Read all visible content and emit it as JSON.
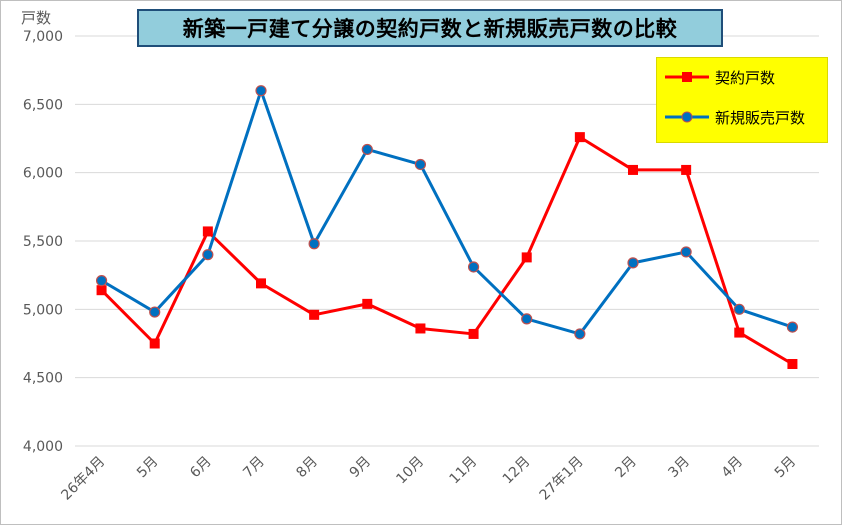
{
  "chart_data": {
    "type": "line",
    "title": "新築一戸建て分譲の契約戸数と新規販売戸数の比較",
    "ylabel": "戸数",
    "ylim": [
      4000,
      7000
    ],
    "yticks": [
      "4,000",
      "4,500",
      "5,000",
      "5,500",
      "6,000",
      "6,500",
      "7,000"
    ],
    "ytick_values": [
      4000,
      4500,
      5000,
      5500,
      6000,
      6500,
      7000
    ],
    "categories": [
      "26年4月",
      "5月",
      "6月",
      "7月",
      "8月",
      "9月",
      "10月",
      "11月",
      "12月",
      "27年1月",
      "2月",
      "3月",
      "4月",
      "5月"
    ],
    "grid": true,
    "legend_position": "top-right",
    "series": [
      {
        "name": "契約戸数",
        "color": "#ff0000",
        "marker": "square",
        "values": [
          5140,
          4750,
          5570,
          5190,
          4960,
          5040,
          4860,
          4820,
          5380,
          6260,
          6020,
          6020,
          4830,
          4600
        ]
      },
      {
        "name": "新規販売戸数",
        "color": "#0070c0",
        "marker": "circle",
        "values": [
          5210,
          4980,
          5400,
          6600,
          5480,
          6170,
          6060,
          5310,
          4930,
          4820,
          5340,
          5420,
          5000,
          4870
        ]
      }
    ]
  }
}
